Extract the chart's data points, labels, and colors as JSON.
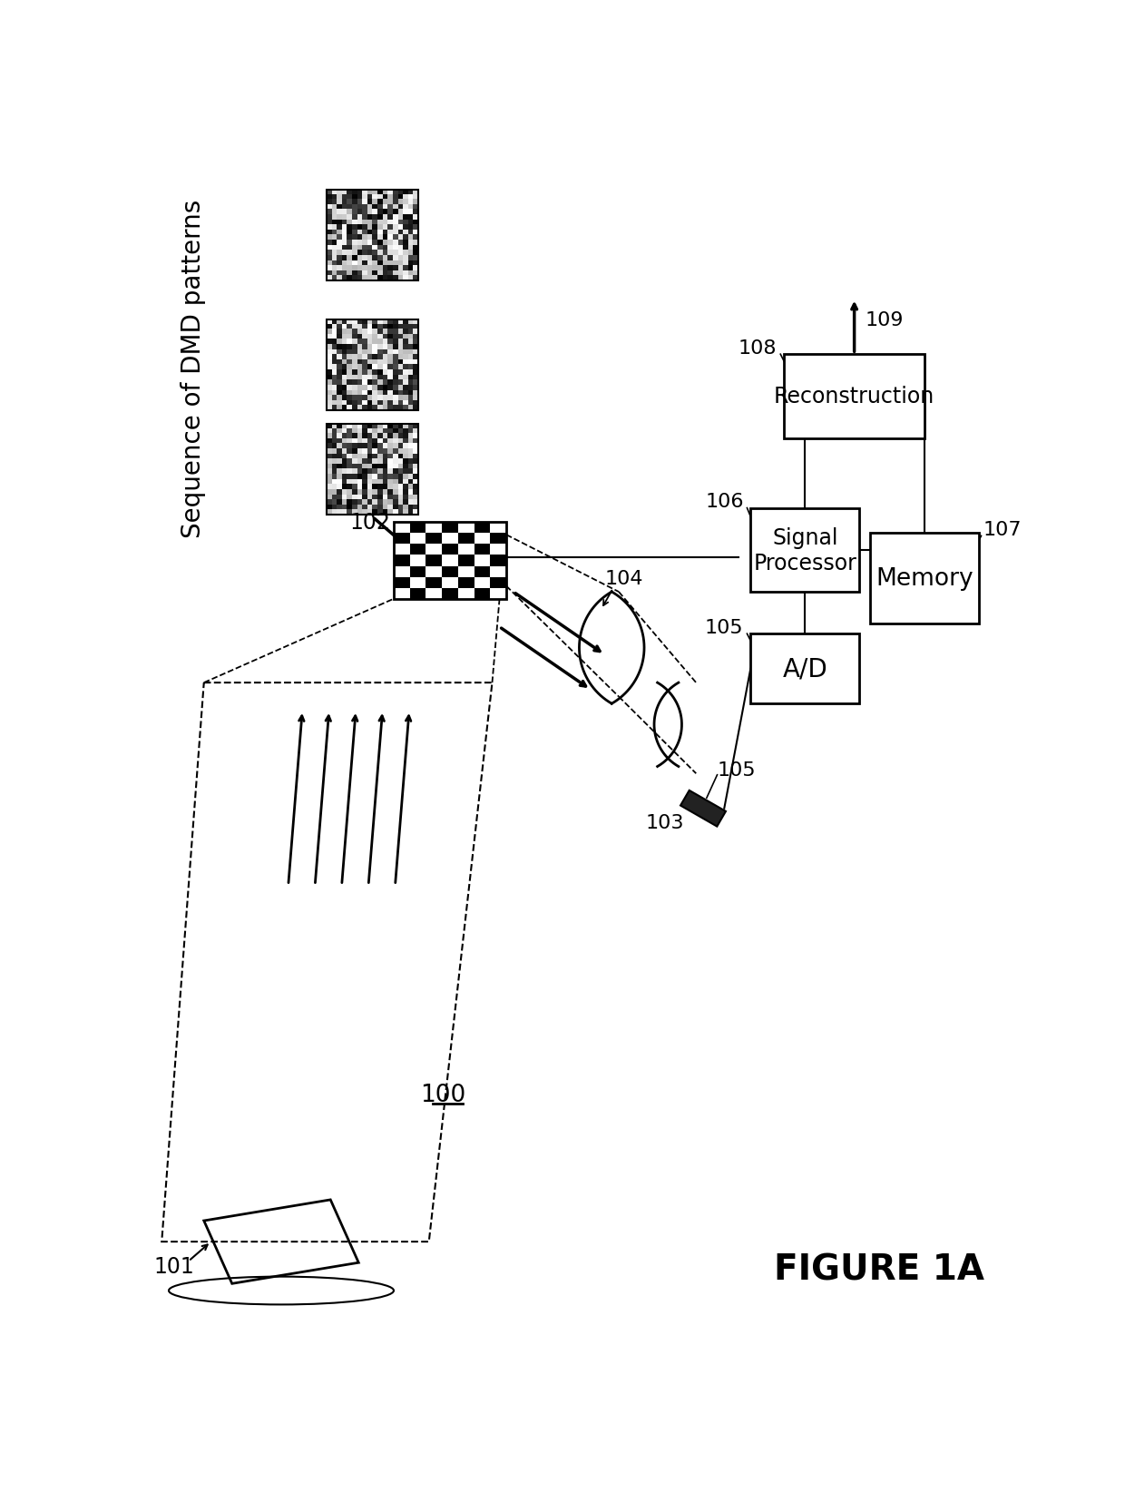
{
  "title": "FIGURE 1A",
  "background_color": "#ffffff",
  "fig_width": 12.4,
  "fig_height": 16.56,
  "dpi": 100,
  "components": {
    "scene_label": "101",
    "dmd_label": "102",
    "detector_label": "103",
    "lens_label": "104",
    "detector_num": "105",
    "ad_label": "A/D",
    "signal_processor_label": "Signal\nProcessor",
    "signal_processor_num": "106",
    "memory_label": "Memory",
    "memory_num": "107",
    "reconstruction_label": "Reconstruction",
    "reconstruction_num": "108",
    "output_num": "109",
    "system_num": "100",
    "dmd_sequence_label": "Sequence of DMD patterns"
  }
}
